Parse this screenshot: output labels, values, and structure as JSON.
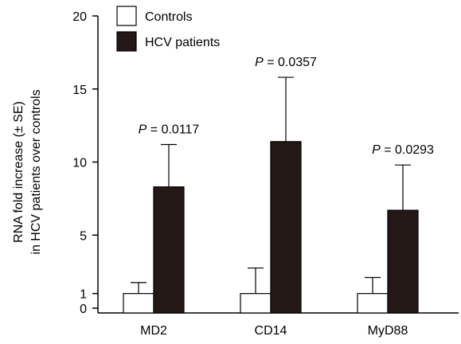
{
  "chart_data": {
    "type": "bar",
    "categories": [
      "MD2",
      "CD14",
      "MyD88"
    ],
    "series": [
      {
        "name": "Controls",
        "color": "#ffffff",
        "values": [
          1,
          1,
          1
        ],
        "errors": [
          0.75,
          1.75,
          1.1
        ]
      },
      {
        "name": "HCV patients",
        "color": "#231815",
        "values": [
          8.3,
          11.4,
          6.7
        ],
        "errors": [
          2.9,
          4.4,
          3.1
        ]
      }
    ],
    "annotations": [
      {
        "category": "MD2",
        "p_symbol": "P",
        "text": " = 0.0117"
      },
      {
        "category": "CD14",
        "p_symbol": "P",
        "text": " = 0.0357"
      },
      {
        "category": "MyD88",
        "p_symbol": "P",
        "text": " = 0.0293"
      }
    ],
    "ylabel_line1": "RNA fold increase (± SE)",
    "ylabel_line2": "in HCV patients over controls",
    "yticks": [
      0,
      1,
      5,
      10,
      15,
      20
    ],
    "ylim": [
      0,
      20
    ],
    "legend_position": "top-left",
    "grid": false
  }
}
